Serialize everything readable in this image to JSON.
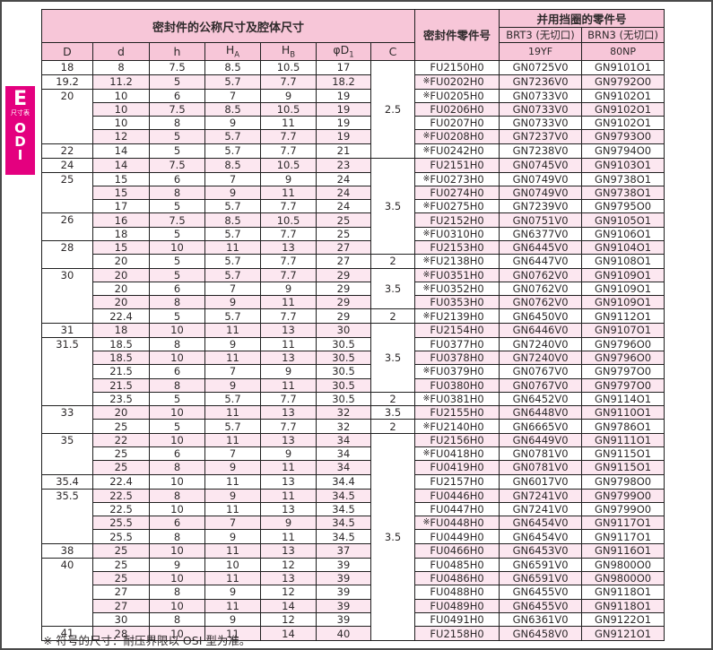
{
  "page": {
    "footnote": "※ 符号的尺寸：耐压界限以 OSI 型为准。"
  },
  "colors": {
    "magenta": "#e4007f",
    "header_pink": "#f7c6d8",
    "row_pink": "#fce7f0",
    "border": "#1f1f1f",
    "text": "#2e2a2b"
  },
  "sidebar": {
    "section_letter": "E",
    "section_label": "尺寸表",
    "code_letters": [
      "O",
      "D",
      "I"
    ]
  },
  "table": {
    "title": "密封件的公称尺寸及腔体尺寸",
    "seal_part_no_header": "密封件零件号",
    "backup_ring_header": "并用挡圈的零件号",
    "backup_cols": [
      {
        "name": "BRT3 (无切口)",
        "grade": "19YF"
      },
      {
        "name": "BRN3 (无切口)",
        "grade": "80NP"
      }
    ],
    "dim_columns": [
      {
        "main": "D",
        "sub": ""
      },
      {
        "main": "d",
        "sub": ""
      },
      {
        "main": "h",
        "sub": ""
      },
      {
        "main": "H",
        "sub": "A"
      },
      {
        "main": "H",
        "sub": "B"
      },
      {
        "main": "φD",
        "sub": "1"
      },
      {
        "main": "C",
        "sub": ""
      }
    ],
    "d_groups": [
      {
        "label": "18",
        "rows": 1
      },
      {
        "label": "19.2",
        "rows": 1
      },
      {
        "label": "20",
        "rows": 4
      },
      {
        "label": "22",
        "rows": 1
      },
      {
        "label": "24",
        "rows": 1
      },
      {
        "label": "25",
        "rows": 3
      },
      {
        "label": "26",
        "rows": 2
      },
      {
        "label": "28",
        "rows": 2
      },
      {
        "label": "30",
        "rows": 4
      },
      {
        "label": "31",
        "rows": 1
      },
      {
        "label": "31.5",
        "rows": 5
      },
      {
        "label": "33",
        "rows": 2
      },
      {
        "label": "35",
        "rows": 3
      },
      {
        "label": "35.4",
        "rows": 1
      },
      {
        "label": "35.5",
        "rows": 4
      },
      {
        "label": "38",
        "rows": 1
      },
      {
        "label": "40",
        "rows": 5
      },
      {
        "label": "41",
        "rows": 1
      }
    ],
    "c_groups": [
      {
        "label": "2.5",
        "rows": 7
      },
      {
        "label": "3.5",
        "rows": 7
      },
      {
        "label": "2",
        "rows": 1
      },
      {
        "label": "3.5",
        "rows": 3
      },
      {
        "label": "2",
        "rows": 1
      },
      {
        "label": "3.5",
        "rows": 5
      },
      {
        "label": "2",
        "rows": 1
      },
      {
        "label": "3.5",
        "rows": 1
      },
      {
        "label": "2",
        "rows": 1
      },
      {
        "label": "3.5",
        "rows": 15
      }
    ],
    "rows": [
      {
        "d": "8",
        "h": "7.5",
        "ha": "8.5",
        "hb": "10.5",
        "d1": "17",
        "mark": false,
        "fu": "FU2150H0",
        "brt": "GN0725V0",
        "brn": "GN9101O1"
      },
      {
        "d": "11.2",
        "h": "5",
        "ha": "5.7",
        "hb": "7.7",
        "d1": "18.2",
        "mark": true,
        "fu": "FU0202H0",
        "brt": "GN7236V0",
        "brn": "GN9792O0"
      },
      {
        "d": "10",
        "h": "6",
        "ha": "7",
        "hb": "9",
        "d1": "19",
        "mark": true,
        "fu": "FU0205H0",
        "brt": "GN0733V0",
        "brn": "GN9102O1"
      },
      {
        "d": "10",
        "h": "7.5",
        "ha": "8.5",
        "hb": "10.5",
        "d1": "19",
        "mark": false,
        "fu": "FU0206H0",
        "brt": "GN0733V0",
        "brn": "GN9102O1"
      },
      {
        "d": "10",
        "h": "8",
        "ha": "9",
        "hb": "11",
        "d1": "19",
        "mark": false,
        "fu": "FU0207H0",
        "brt": "GN0733V0",
        "brn": "GN9102O1"
      },
      {
        "d": "12",
        "h": "5",
        "ha": "5.7",
        "hb": "7.7",
        "d1": "19",
        "mark": true,
        "fu": "FU0208H0",
        "brt": "GN7237V0",
        "brn": "GN9793O0"
      },
      {
        "d": "14",
        "h": "5",
        "ha": "5.7",
        "hb": "7.7",
        "d1": "21",
        "mark": true,
        "fu": "FU0242H0",
        "brt": "GN7238V0",
        "brn": "GN9794O0"
      },
      {
        "d": "14",
        "h": "7.5",
        "ha": "8.5",
        "hb": "10.5",
        "d1": "23",
        "mark": false,
        "fu": "FU2151H0",
        "brt": "GN0745V0",
        "brn": "GN9103O1"
      },
      {
        "d": "15",
        "h": "6",
        "ha": "7",
        "hb": "9",
        "d1": "24",
        "mark": true,
        "fu": "FU0273H0",
        "brt": "GN0749V0",
        "brn": "GN9738O1"
      },
      {
        "d": "15",
        "h": "8",
        "ha": "9",
        "hb": "11",
        "d1": "24",
        "mark": false,
        "fu": "FU0274H0",
        "brt": "GN0749V0",
        "brn": "GN9738O1"
      },
      {
        "d": "17",
        "h": "5",
        "ha": "5.7",
        "hb": "7.7",
        "d1": "24",
        "mark": true,
        "fu": "FU0275H0",
        "brt": "GN7239V0",
        "brn": "GN9795O0"
      },
      {
        "d": "16",
        "h": "7.5",
        "ha": "8.5",
        "hb": "10.5",
        "d1": "25",
        "mark": false,
        "fu": "FU2152H0",
        "brt": "GN0751V0",
        "brn": "GN9105O1"
      },
      {
        "d": "18",
        "h": "5",
        "ha": "5.7",
        "hb": "7.7",
        "d1": "25",
        "mark": true,
        "fu": "FU0310H0",
        "brt": "GN6377V0",
        "brn": "GN9106O1"
      },
      {
        "d": "15",
        "h": "10",
        "ha": "11",
        "hb": "13",
        "d1": "27",
        "mark": false,
        "fu": "FU2153H0",
        "brt": "GN6445V0",
        "brn": "GN9104O1"
      },
      {
        "d": "20",
        "h": "5",
        "ha": "5.7",
        "hb": "7.7",
        "d1": "27",
        "mark": true,
        "fu": "FU2138H0",
        "brt": "GN6447V0",
        "brn": "GN9108O1"
      },
      {
        "d": "20",
        "h": "5",
        "ha": "5.7",
        "hb": "7.7",
        "d1": "29",
        "mark": true,
        "fu": "FU0351H0",
        "brt": "GN0762V0",
        "brn": "GN9109O1"
      },
      {
        "d": "20",
        "h": "6",
        "ha": "7",
        "hb": "9",
        "d1": "29",
        "mark": true,
        "fu": "FU0352H0",
        "brt": "GN0762V0",
        "brn": "GN9109O1"
      },
      {
        "d": "20",
        "h": "8",
        "ha": "9",
        "hb": "11",
        "d1": "29",
        "mark": false,
        "fu": "FU0353H0",
        "brt": "GN0762V0",
        "brn": "GN9109O1"
      },
      {
        "d": "22.4",
        "h": "5",
        "ha": "5.7",
        "hb": "7.7",
        "d1": "29",
        "mark": true,
        "fu": "FU2139H0",
        "brt": "GN6450V0",
        "brn": "GN9112O1"
      },
      {
        "d": "18",
        "h": "10",
        "ha": "11",
        "hb": "13",
        "d1": "30",
        "mark": false,
        "fu": "FU2154H0",
        "brt": "GN6446V0",
        "brn": "GN9107O1"
      },
      {
        "d": "18.5",
        "h": "8",
        "ha": "9",
        "hb": "11",
        "d1": "30.5",
        "mark": false,
        "fu": "FU0377H0",
        "brt": "GN7240V0",
        "brn": "GN9796O0"
      },
      {
        "d": "18.5",
        "h": "10",
        "ha": "11",
        "hb": "13",
        "d1": "30.5",
        "mark": false,
        "fu": "FU0378H0",
        "brt": "GN7240V0",
        "brn": "GN9796O0"
      },
      {
        "d": "21.5",
        "h": "6",
        "ha": "7",
        "hb": "9",
        "d1": "30.5",
        "mark": true,
        "fu": "FU0379H0",
        "brt": "GN0767V0",
        "brn": "GN9797O0"
      },
      {
        "d": "21.5",
        "h": "8",
        "ha": "9",
        "hb": "11",
        "d1": "30.5",
        "mark": false,
        "fu": "FU0380H0",
        "brt": "GN0767V0",
        "brn": "GN9797O0"
      },
      {
        "d": "23.5",
        "h": "5",
        "ha": "5.7",
        "hb": "7.7",
        "d1": "30.5",
        "mark": true,
        "fu": "FU0381H0",
        "brt": "GN6452V0",
        "brn": "GN9114O1"
      },
      {
        "d": "20",
        "h": "10",
        "ha": "11",
        "hb": "13",
        "d1": "32",
        "mark": false,
        "fu": "FU2155H0",
        "brt": "GN6448V0",
        "brn": "GN9110O1"
      },
      {
        "d": "25",
        "h": "5",
        "ha": "5.7",
        "hb": "7.7",
        "d1": "32",
        "mark": true,
        "fu": "FU2140H0",
        "brt": "GN6665V0",
        "brn": "GN9786O1"
      },
      {
        "d": "22",
        "h": "10",
        "ha": "11",
        "hb": "13",
        "d1": "34",
        "mark": false,
        "fu": "FU2156H0",
        "brt": "GN6449V0",
        "brn": "GN9111O1"
      },
      {
        "d": "25",
        "h": "6",
        "ha": "7",
        "hb": "9",
        "d1": "34",
        "mark": true,
        "fu": "FU0418H0",
        "brt": "GN0781V0",
        "brn": "GN9115O1"
      },
      {
        "d": "25",
        "h": "8",
        "ha": "9",
        "hb": "11",
        "d1": "34",
        "mark": false,
        "fu": "FU0419H0",
        "brt": "GN0781V0",
        "brn": "GN9115O1"
      },
      {
        "d": "22.4",
        "h": "10",
        "ha": "11",
        "hb": "13",
        "d1": "34.4",
        "mark": false,
        "fu": "FU2157H0",
        "brt": "GN6017V0",
        "brn": "GN9798O0"
      },
      {
        "d": "22.5",
        "h": "8",
        "ha": "9",
        "hb": "11",
        "d1": "34.5",
        "mark": false,
        "fu": "FU0446H0",
        "brt": "GN7241V0",
        "brn": "GN9799O0"
      },
      {
        "d": "22.5",
        "h": "10",
        "ha": "11",
        "hb": "13",
        "d1": "34.5",
        "mark": false,
        "fu": "FU0447H0",
        "brt": "GN7241V0",
        "brn": "GN9799O0"
      },
      {
        "d": "25.5",
        "h": "6",
        "ha": "7",
        "hb": "9",
        "d1": "34.5",
        "mark": true,
        "fu": "FU0448H0",
        "brt": "GN6454V0",
        "brn": "GN9117O1"
      },
      {
        "d": "25.5",
        "h": "8",
        "ha": "9",
        "hb": "11",
        "d1": "34.5",
        "mark": false,
        "fu": "FU0449H0",
        "brt": "GN6454V0",
        "brn": "GN9117O1"
      },
      {
        "d": "25",
        "h": "10",
        "ha": "11",
        "hb": "13",
        "d1": "37",
        "mark": false,
        "fu": "FU0466H0",
        "brt": "GN6453V0",
        "brn": "GN9116O1"
      },
      {
        "d": "25",
        "h": "9",
        "ha": "10",
        "hb": "12",
        "d1": "39",
        "mark": false,
        "fu": "FU0485H0",
        "brt": "GN6591V0",
        "brn": "GN9800O0"
      },
      {
        "d": "25",
        "h": "10",
        "ha": "11",
        "hb": "13",
        "d1": "39",
        "mark": false,
        "fu": "FU0486H0",
        "brt": "GN6591V0",
        "brn": "GN9800O0"
      },
      {
        "d": "27",
        "h": "8",
        "ha": "9",
        "hb": "12",
        "d1": "39",
        "mark": false,
        "fu": "FU0488H0",
        "brt": "GN6455V0",
        "brn": "GN9118O1"
      },
      {
        "d": "27",
        "h": "10",
        "ha": "11",
        "hb": "14",
        "d1": "39",
        "mark": false,
        "fu": "FU0489H0",
        "brt": "GN6455V0",
        "brn": "GN9118O1"
      },
      {
        "d": "30",
        "h": "8",
        "ha": "9",
        "hb": "12",
        "d1": "39",
        "mark": false,
        "fu": "FU0491H0",
        "brt": "GN6361V0",
        "brn": "GN9122O1"
      },
      {
        "d": "28",
        "h": "10",
        "ha": "11",
        "hb": "14",
        "d1": "40",
        "mark": false,
        "fu": "FU2158H0",
        "brt": "GN6458V0",
        "brn": "GN9121O1"
      }
    ]
  }
}
